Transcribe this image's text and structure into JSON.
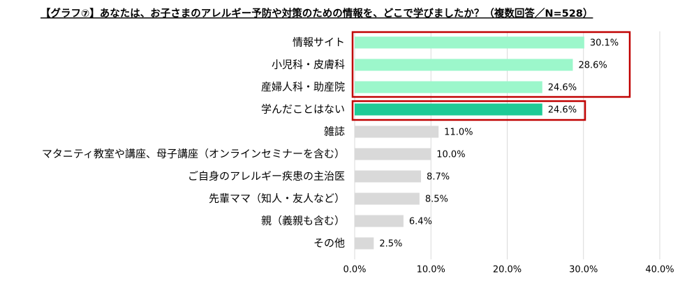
{
  "chart_data": {
    "type": "bar",
    "orientation": "horizontal",
    "title": "【グラフ⑦】あなたは、お子さまのアレルギー予防や対策のための情報を、どこで学びましたか？（複数回答／N=528）",
    "categories": [
      "情報サイト",
      "小児科・皮膚科",
      "産婦人科・助産院",
      "学んだことはない",
      "雑誌",
      "マタニティ教室や講座、母子講座（オンラインセミナーを含む）",
      "ご自身のアレルギー疾患の主治医",
      "先輩ママ（知人・友人など）",
      "親（義親も含む）",
      "その他"
    ],
    "values": [
      30.1,
      28.6,
      24.6,
      24.6,
      11.0,
      10.0,
      8.7,
      8.5,
      6.4,
      2.5
    ],
    "value_labels": [
      "30.1%",
      "28.6%",
      "24.6%",
      "24.6%",
      "11.0%",
      "10.0%",
      "8.7%",
      "8.5%",
      "6.4%",
      "2.5%"
    ],
    "colors": [
      "#9cf7cb",
      "#9cf7cb",
      "#9cf7cb",
      "#1ecb96",
      "#d9d9d9",
      "#d9d9d9",
      "#d9d9d9",
      "#d9d9d9",
      "#d9d9d9",
      "#d9d9d9"
    ],
    "xlim": [
      0,
      40
    ],
    "xticks": [
      {
        "value": 0,
        "label": "0.0%"
      },
      {
        "value": 10,
        "label": "10.0%"
      },
      {
        "value": 20,
        "label": "20.0%"
      },
      {
        "value": 30,
        "label": "30.0%"
      },
      {
        "value": 40,
        "label": "40.0%"
      }
    ],
    "grid": true
  }
}
